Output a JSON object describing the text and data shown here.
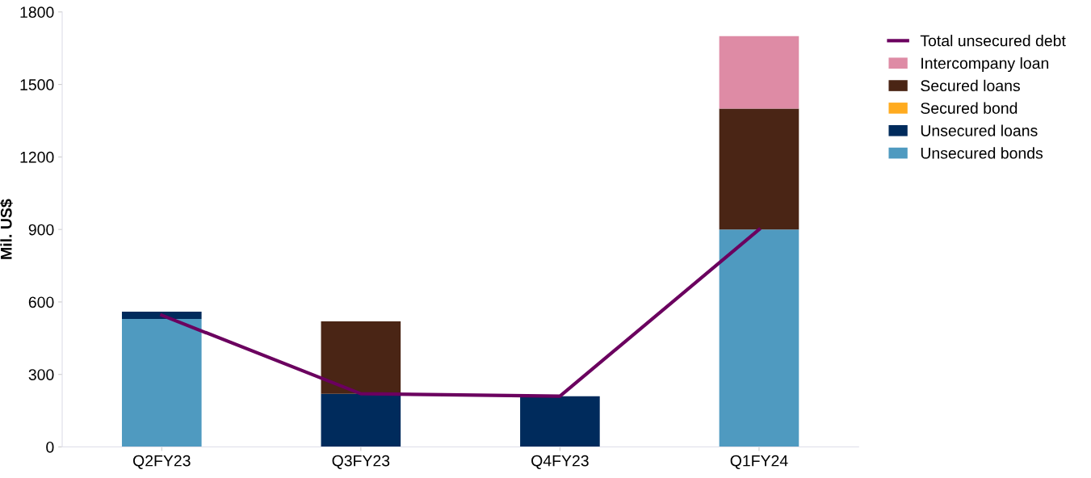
{
  "chart_data": {
    "type": "bar",
    "stacked": true,
    "ylabel": "Mil. US$",
    "categories": [
      "Q2FY23",
      "Q3FY23",
      "Q4FY23",
      "Q1FY24"
    ],
    "series": [
      {
        "name": "Unsecured bonds",
        "color": "#4f9ac0",
        "values": [
          530,
          0,
          0,
          900
        ]
      },
      {
        "name": "Unsecured loans",
        "color": "#002b5c",
        "values": [
          30,
          220,
          210,
          0
        ]
      },
      {
        "name": "Secured bond",
        "color": "#ffab1f",
        "values": [
          0,
          0,
          0,
          0
        ]
      },
      {
        "name": "Secured loans",
        "color": "#4a2515",
        "values": [
          0,
          300,
          0,
          500
        ]
      },
      {
        "name": "Intercompany loan",
        "color": "#de8ba5",
        "values": [
          0,
          0,
          0,
          300
        ]
      },
      {
        "name": "Total unsecured debt",
        "type": "line",
        "color": "#6b005f",
        "values": [
          545,
          220,
          210,
          900
        ]
      }
    ],
    "ylim": [
      0,
      1800
    ],
    "yticks": [
      0,
      300,
      600,
      900,
      1200,
      1500,
      1800
    ],
    "grid": false,
    "legend": "right"
  }
}
